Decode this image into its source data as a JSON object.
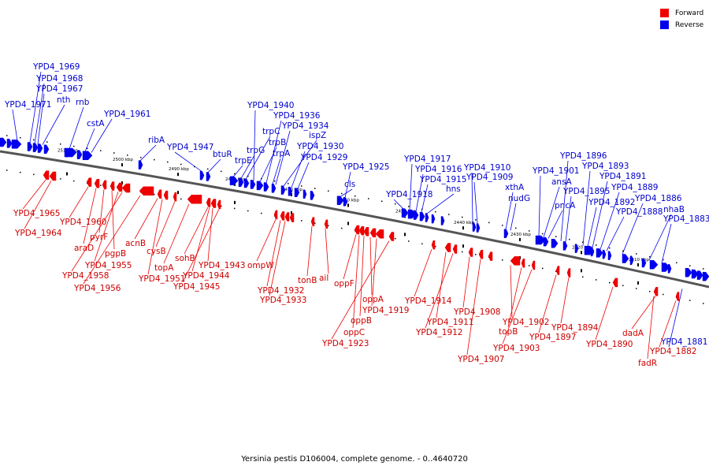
{
  "caption": "Yersinia pestis D106004, complete genome. - 0..4640720",
  "legend": [
    {
      "label": "Forward",
      "color": "#ee0000"
    },
    {
      "label": "Reverse",
      "color": "#0000ee"
    }
  ],
  "colors": {
    "forward": "#ee0000",
    "reverse": "#0000ee",
    "axis": "#555555"
  },
  "axis_ticks": [
    {
      "label": "2510 kbp",
      "kbp": 2510
    },
    {
      "label": "2500 kbp",
      "kbp": 2500
    },
    {
      "label": "2490 kbp",
      "kbp": 2490
    },
    {
      "label": "2480 kbp",
      "kbp": 2480
    },
    {
      "label": "2470 kbp",
      "kbp": 2470
    },
    {
      "label": "2460 kbp",
      "kbp": 2460
    },
    {
      "label": "2450 kbp",
      "kbp": 2450
    },
    {
      "label": "2440 kbp",
      "kbp": 2440
    },
    {
      "label": "2430 kbp",
      "kbp": 2430
    },
    {
      "label": "2420 kbp",
      "kbp": 2420
    },
    {
      "label": "2410 kbp",
      "kbp": 2410
    }
  ],
  "reverse_genes": [
    "YPD4_1971",
    "YPD4_1969",
    "YPD4_1968",
    "YPD4_1967",
    "nth",
    "rnb",
    "cstA",
    "YPD4_1961",
    "ribA",
    "YPD4_1947",
    "btuR",
    "trpE",
    "trpG",
    "trpC",
    "YPD4_1940",
    "trpB",
    "YPD4_1936",
    "trpA",
    "YPD4_1934",
    "ispZ",
    "YPD4_1930",
    "YPD4_1929",
    "cls",
    "YPD4_1925",
    "YPD4_1918",
    "YPD4_1917",
    "YPD4_1916",
    "YPD4_1915",
    "hns",
    "YPD4_1910",
    "YPD4_1909",
    "xthA",
    "nudG",
    "YPD4_1901",
    "ansA",
    "pncA",
    "YPD4_1896",
    "YPD4_1895",
    "YPD4_1893",
    "YPD4_1892",
    "YPD4_1891",
    "YPD4_1889",
    "YPD4_1888",
    "YPD4_1886",
    "nhaB",
    "YPD4_1883",
    "YPD4_1881"
  ],
  "forward_genes": [
    "YPD4_1965",
    "YPD4_1964",
    "YPD4_1960",
    "araD",
    "pyrF",
    "pgpB",
    "YPD4_1955",
    "YPD4_1958",
    "YPD4_1956",
    "acnB",
    "YPD4_1951",
    "cysB",
    "topA",
    "sohB",
    "YPD4_1943",
    "YPD4_1944",
    "YPD4_1945",
    "ompW",
    "YPD4_1932",
    "YPD4_1933",
    "tonB",
    "ail",
    "oppF",
    "oppA",
    "YPD4_1919",
    "oppB",
    "oppC",
    "YPD4_1923",
    "YPD4_1914",
    "YPD4_1911",
    "YPD4_1912",
    "YPD4_1908",
    "YPD4_1907",
    "YPD4_1902",
    "topB",
    "YPD4_1903",
    "YPD4_1897",
    "YPD4_1894",
    "YPD4_1890",
    "dadA",
    "fadR",
    "YPD4_1882"
  ]
}
